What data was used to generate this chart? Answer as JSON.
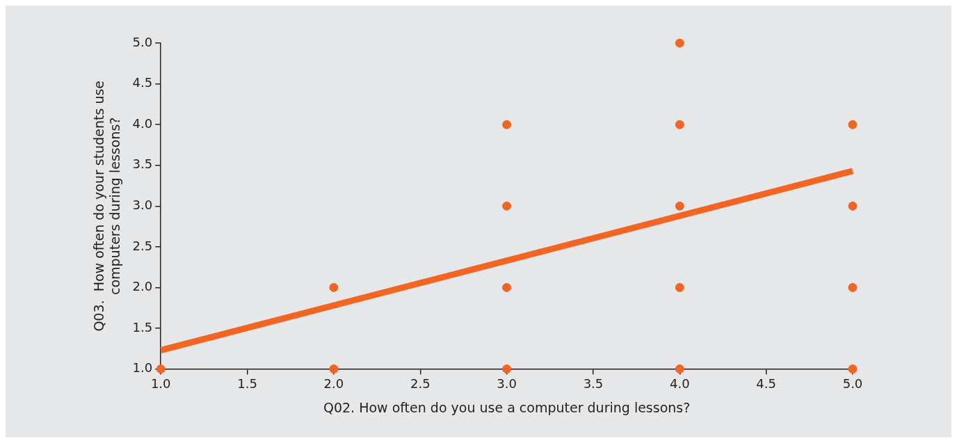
{
  "chart_data": {
    "type": "scatter",
    "xlabel": "Q02. How often do you use a computer during lessons?",
    "ylabel": "Q03.  How often do your students use\ncomputers during lessons?",
    "xlim": [
      1,
      5
    ],
    "ylim": [
      1,
      5
    ],
    "xticks": [
      {
        "value": 1,
        "label": "1.0"
      },
      {
        "value": 1.5,
        "label": "1.5"
      },
      {
        "value": 2,
        "label": "2.0"
      },
      {
        "value": 2.5,
        "label": "2.5"
      },
      {
        "value": 3,
        "label": "3.0"
      },
      {
        "value": 3.5,
        "label": "3.5"
      },
      {
        "value": 4,
        "label": "4.0"
      },
      {
        "value": 4.5,
        "label": "4.5"
      },
      {
        "value": 5,
        "label": "5.0"
      }
    ],
    "yticks": [
      {
        "value": 1,
        "label": "1.0"
      },
      {
        "value": 1.5,
        "label": "1.5"
      },
      {
        "value": 2,
        "label": "2.0"
      },
      {
        "value": 2.5,
        "label": "2.5"
      },
      {
        "value": 3,
        "label": "3.0"
      },
      {
        "value": 3.5,
        "label": "3.5"
      },
      {
        "value": 4,
        "label": "4.0"
      },
      {
        "value": 4.5,
        "label": "4.5"
      },
      {
        "value": 5,
        "label": "5.0"
      }
    ],
    "grid": false,
    "series": [
      {
        "type": "scatter",
        "color": "#f26522",
        "marker": "circle",
        "x": [
          1,
          2,
          2,
          3,
          3,
          3,
          3,
          4,
          4,
          4,
          4,
          4,
          5,
          5,
          5,
          5
        ],
        "values": [
          1,
          1,
          2,
          1,
          2,
          3,
          4,
          1,
          2,
          3,
          4,
          5,
          1,
          2,
          3,
          4
        ]
      },
      {
        "type": "line",
        "color": "#f26522",
        "marker": "none",
        "line_style": "solid",
        "x": [
          1,
          5
        ],
        "values": [
          1.23,
          3.43
        ]
      }
    ]
  }
}
